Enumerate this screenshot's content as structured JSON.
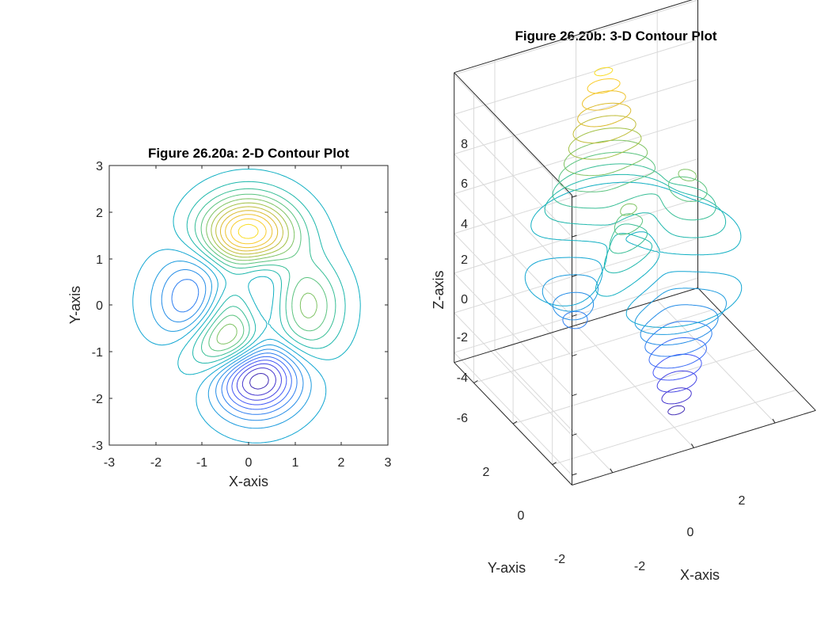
{
  "figure": {
    "background": "#ffffff",
    "colormap": "parula",
    "colors": [
      "#3E26A8",
      "#4538D7",
      "#4258F9",
      "#2C7CF0",
      "#1E98E1",
      "#09ABCB",
      "#23BBA2",
      "#62C479",
      "#A4C145",
      "#D9BA2E",
      "#F9C62F",
      "#F9E61E"
    ]
  },
  "chart_data": [
    {
      "type": "contour",
      "title": "Figure 26.20a: 2-D Contour Plot",
      "xlabel": "X-axis",
      "ylabel": "Y-axis",
      "xlim": [
        -3,
        3
      ],
      "ylim": [
        -3,
        3
      ],
      "xticks": [
        "-3",
        "-2",
        "-1",
        "0",
        "1",
        "2",
        "3"
      ],
      "yticks": [
        "3",
        "2",
        "1",
        "0",
        "-1",
        "-2",
        "-3"
      ],
      "grid": false,
      "function": "peaks(x, y)",
      "levels": 20,
      "features": [
        {
          "kind": "maximum",
          "x": 0.0,
          "y": 1.58,
          "z": 8.1
        },
        {
          "kind": "maximum",
          "x": 1.3,
          "y": 0.0,
          "z": 3.6
        },
        {
          "kind": "maximum",
          "x": -0.46,
          "y": -0.63,
          "z": 3.8
        },
        {
          "kind": "minimum",
          "x": 0.23,
          "y": -1.63,
          "z": -6.5
        },
        {
          "kind": "minimum",
          "x": -1.35,
          "y": 0.2,
          "z": -3.0
        }
      ]
    },
    {
      "type": "contour3",
      "title": "Figure 26.20b: 3-D Contour Plot",
      "xlabel": "X-axis",
      "ylabel": "Y-axis",
      "zlabel": "Z-axis",
      "xlim": [
        -3,
        3
      ],
      "ylim": [
        -3,
        3
      ],
      "zlim": [
        -6.5,
        8.1
      ],
      "xticks": [
        "-2",
        "0",
        "2"
      ],
      "yticks": [
        "2",
        "0",
        "-2"
      ],
      "zticks": [
        "8",
        "6",
        "4",
        "2",
        "0",
        "-2",
        "-4",
        "-6"
      ],
      "grid": true,
      "function": "peaks(x, y)",
      "levels": 20
    }
  ]
}
